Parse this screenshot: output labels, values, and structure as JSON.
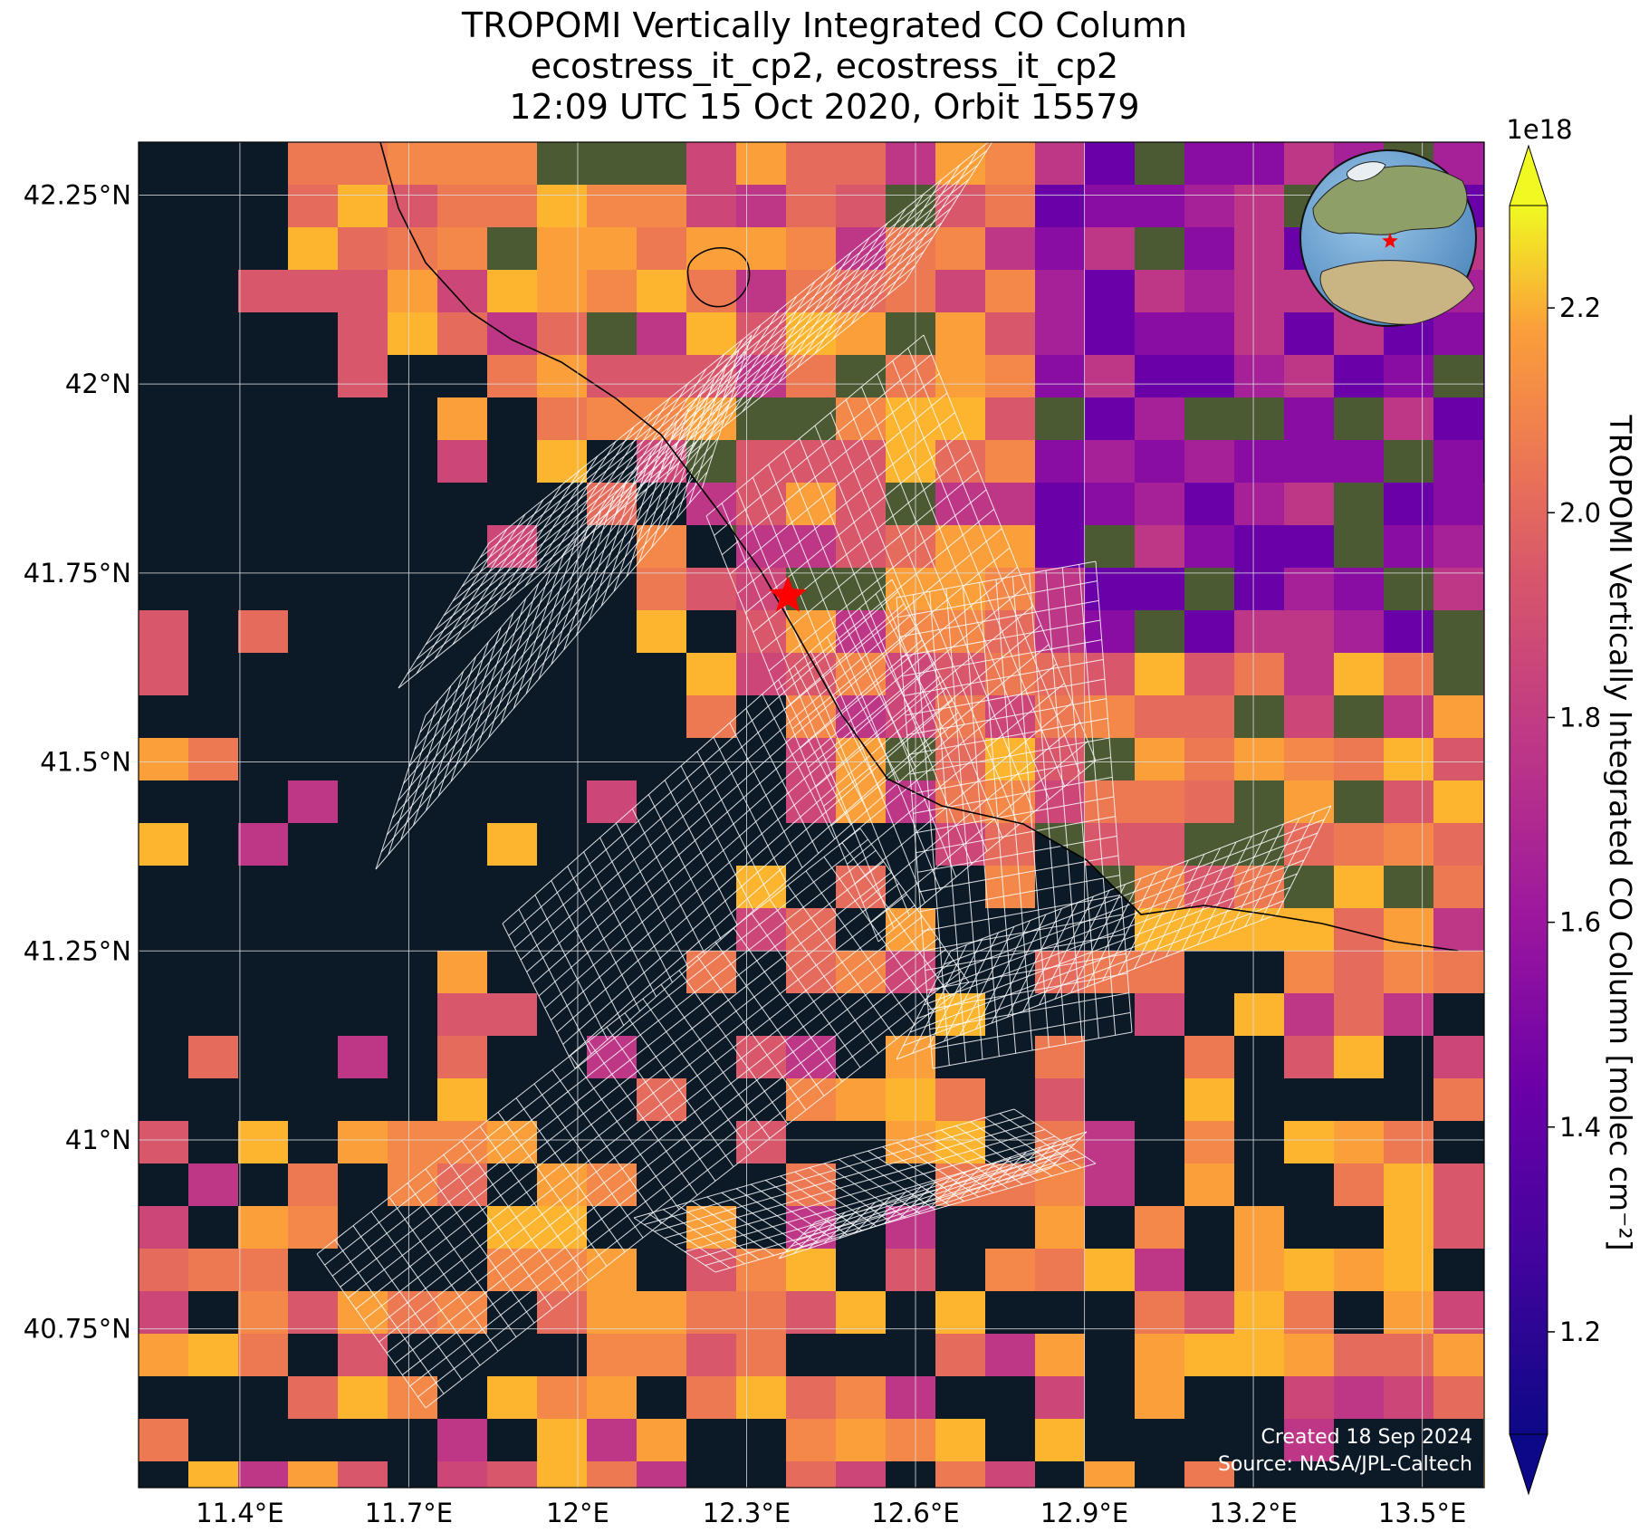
{
  "title": {
    "line1": "TROPOMI Vertically Integrated CO Column",
    "line2": "ecostress_it_cp2, ecostress_it_cp2",
    "line3": "12:09 UTC 15 Oct 2020, Orbit 15579"
  },
  "map": {
    "lon_range": [
      11.22,
      13.61
    ],
    "lat_range": [
      40.54,
      42.32
    ],
    "lon_ticks": [
      "11.4°E",
      "11.7°E",
      "12°E",
      "12.3°E",
      "12.6°E",
      "12.9°E",
      "13.2°E",
      "13.5°E"
    ],
    "lat_ticks": [
      "42.25°N",
      "42°N",
      "41.75°N",
      "41.5°N",
      "41.25°N",
      "41°N",
      "40.75°N"
    ],
    "site_marker": {
      "symbol": "red-star",
      "lon": 12.34,
      "lat": 41.7
    },
    "sea_color": "#0c1a28",
    "land_color": "#4b5a33",
    "overlay_grid": "ECOSTRESS scene footprints (white)",
    "inset_globe": "Europe / North Africa with red star location"
  },
  "colorbar": {
    "label": "TROPOMI Vertically Integrated CO Column [molec cm⁻²]",
    "multiplier": "1e18",
    "ticks": [
      "1.2",
      "1.4",
      "1.6",
      "1.8",
      "2.0",
      "2.2"
    ],
    "range": [
      1.1,
      2.3
    ],
    "colormap": "plasma"
  },
  "footer": {
    "created": "Created 18 Sep 2024",
    "source": "Source: NASA/JPL-Caltech"
  }
}
